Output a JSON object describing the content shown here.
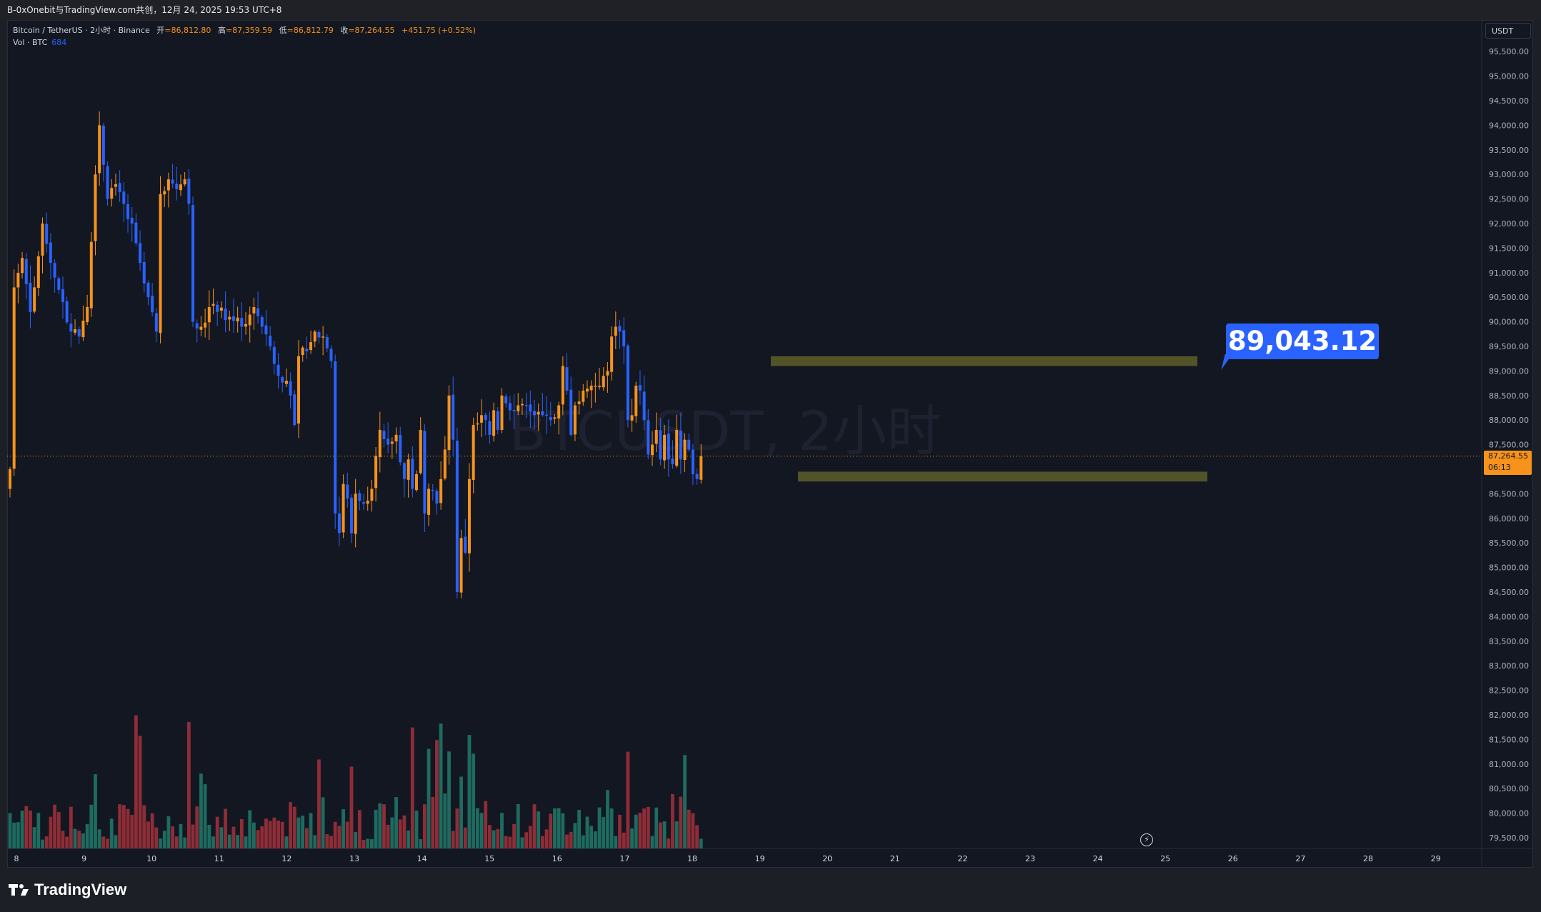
{
  "topbar": {
    "text": "B-0xOnebit与TradingView.com共创，12月 24, 2025 19:53 UTC+8"
  },
  "legend": {
    "symbol": "Bitcoin / TetherUS · 2小时 · Binance",
    "open_label": "开",
    "open_value": "=86,812.80",
    "high_label": "高",
    "high_value": "=87,359.59",
    "low_label": "低",
    "low_value": "=86,812.79",
    "close_label": "收",
    "close_value": "=87,264.55",
    "change": "+451.75 (+0.52%)",
    "vol_label": "Vol · BTC",
    "vol_value": "684"
  },
  "watermark": "BTCUSDT, 2小时",
  "price_axis": {
    "currency": "USDT",
    "ticks": [
      "95,500.00",
      "95,000.00",
      "94,500.00",
      "94,000.00",
      "93,500.00",
      "93,000.00",
      "92,500.00",
      "92,000.00",
      "91,500.00",
      "91,000.00",
      "90,500.00",
      "90,000.00",
      "89,500.00",
      "89,000.00",
      "88,500.00",
      "88,000.00",
      "87,500.00",
      "87,000.00",
      "86,500.00",
      "86,000.00",
      "85,500.00",
      "85,000.00",
      "84,500.00",
      "84,000.00",
      "83,500.00",
      "83,000.00",
      "82,500.00",
      "82,000.00",
      "81,500.00",
      "81,000.00",
      "80,500.00",
      "80,000.00",
      "79,500.00"
    ],
    "last_price": "87,264.55",
    "countdown": "06:13"
  },
  "time_axis": {
    "ticks": [
      "8",
      "9",
      "10",
      "11",
      "12",
      "13",
      "14",
      "15",
      "16",
      "17",
      "18",
      "19",
      "20",
      "21",
      "22",
      "23",
      "24",
      "25",
      "26",
      "27",
      "28",
      "29"
    ]
  },
  "callout": {
    "text": "89,043.12"
  },
  "brand": {
    "name": "TradingView"
  },
  "colors": {
    "up": "#f7931a",
    "down": "#2962ff",
    "vol_up": "#1e6b5f",
    "vol_down": "#8f2d37",
    "zone": "#5b5a2b",
    "background": "#131722"
  },
  "chart_data": {
    "type": "candlestick",
    "interval": "2h",
    "ylim": [
      79200,
      95800
    ],
    "resistance_zone": [
      89100,
      89300
    ],
    "support_zone": [
      86750,
      86950
    ],
    "last_close": 87264.55,
    "anchors_close": [
      [
        0,
        87000
      ],
      [
        1,
        90700
      ],
      [
        3,
        91300
      ],
      [
        5,
        90200
      ],
      [
        8,
        92000
      ],
      [
        10,
        91200
      ],
      [
        11,
        90900
      ],
      [
        13,
        90400
      ],
      [
        15,
        89800
      ],
      [
        17,
        89700
      ],
      [
        19,
        90300
      ],
      [
        21,
        93000
      ],
      [
        22,
        94000
      ],
      [
        24,
        92500
      ],
      [
        26,
        92800
      ],
      [
        28,
        92400
      ],
      [
        30,
        92000
      ],
      [
        32,
        91200
      ],
      [
        34,
        90500
      ],
      [
        36,
        89800
      ],
      [
        37,
        92600
      ],
      [
        39,
        92900
      ],
      [
        41,
        92700
      ],
      [
        43,
        92900
      ],
      [
        44,
        92400
      ],
      [
        45,
        90000
      ],
      [
        47,
        89900
      ],
      [
        49,
        90300
      ],
      [
        51,
        90200
      ],
      [
        54,
        90100
      ],
      [
        57,
        89900
      ],
      [
        60,
        90300
      ],
      [
        62,
        89900
      ],
      [
        64,
        89500
      ],
      [
        66,
        88900
      ],
      [
        68,
        88800
      ],
      [
        69,
        88500
      ],
      [
        70,
        87900
      ],
      [
        71,
        89300
      ],
      [
        73,
        89400
      ],
      [
        75,
        89800
      ],
      [
        77,
        89700
      ],
      [
        79,
        89200
      ],
      [
        80,
        86100
      ],
      [
        81,
        85700
      ],
      [
        82,
        86700
      ],
      [
        83,
        86400
      ],
      [
        84,
        85700
      ],
      [
        85,
        86500
      ],
      [
        87,
        86300
      ],
      [
        89,
        86600
      ],
      [
        91,
        87800
      ],
      [
        93,
        87500
      ],
      [
        95,
        87700
      ],
      [
        97,
        86800
      ],
      [
        98,
        87200
      ],
      [
        99,
        86600
      ],
      [
        100,
        86900
      ],
      [
        101,
        87800
      ],
      [
        102,
        86100
      ],
      [
        103,
        86600
      ],
      [
        105,
        86300
      ],
      [
        106,
        86800
      ],
      [
        107,
        87400
      ],
      [
        108,
        88500
      ],
      [
        109,
        87600
      ],
      [
        110,
        84500
      ],
      [
        111,
        85600
      ],
      [
        112,
        85300
      ],
      [
        113,
        86800
      ],
      [
        114,
        87900
      ],
      [
        116,
        88100
      ],
      [
        118,
        87700
      ],
      [
        119,
        88200
      ],
      [
        120,
        87800
      ],
      [
        121,
        88500
      ],
      [
        123,
        88200
      ],
      [
        125,
        88300
      ],
      [
        127,
        88300
      ],
      [
        129,
        88100
      ],
      [
        131,
        88100
      ],
      [
        133,
        88000
      ],
      [
        135,
        88300
      ],
      [
        136,
        89100
      ],
      [
        137,
        88600
      ],
      [
        138,
        87700
      ],
      [
        139,
        88300
      ],
      [
        141,
        88600
      ],
      [
        143,
        88700
      ],
      [
        144,
        88700
      ],
      [
        146,
        88900
      ],
      [
        147,
        89000
      ],
      [
        148,
        89700
      ],
      [
        149,
        89900
      ],
      [
        150,
        89800
      ],
      [
        151,
        89500
      ],
      [
        152,
        88000
      ],
      [
        153,
        88100
      ],
      [
        154,
        88700
      ],
      [
        155,
        88600
      ],
      [
        156,
        88000
      ],
      [
        157,
        87300
      ],
      [
        158,
        87500
      ],
      [
        159,
        87800
      ],
      [
        160,
        87200
      ],
      [
        161,
        87700
      ],
      [
        162,
        87200
      ],
      [
        163,
        87100
      ],
      [
        164,
        87800
      ],
      [
        165,
        87200
      ],
      [
        166,
        87600
      ],
      [
        167,
        87400
      ],
      [
        168,
        86900
      ],
      [
        169,
        86800
      ],
      [
        170,
        87264.55
      ]
    ]
  }
}
